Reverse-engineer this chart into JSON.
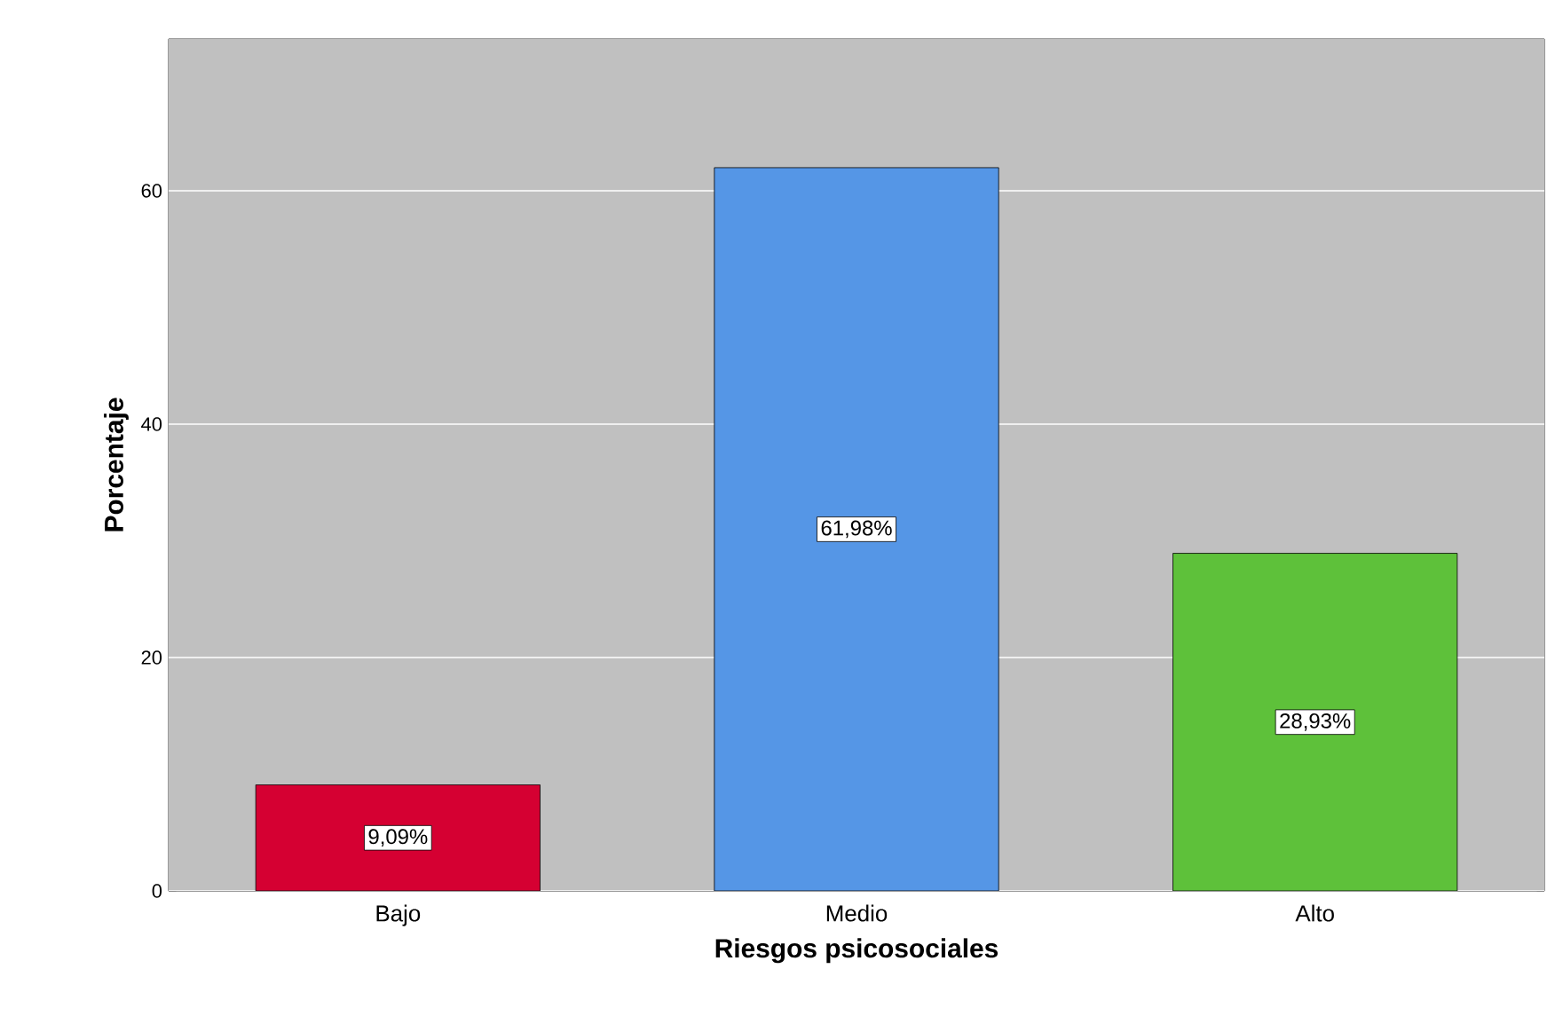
{
  "chart_data": {
    "type": "bar",
    "xlabel": "Riesgos psicosociales",
    "ylabel": "Porcentaje",
    "categories": [
      "Bajo",
      "Medio",
      "Alto"
    ],
    "values": [
      9.09,
      61.98,
      28.93
    ],
    "colors": [
      "#d50032",
      "#5596e6",
      "#5ec13a"
    ],
    "value_labels": [
      "9,09%",
      "61,98%",
      "28,93%"
    ],
    "ylim": [
      0,
      73
    ],
    "yticks": [
      0,
      20,
      40,
      60
    ],
    "grid": "y"
  }
}
